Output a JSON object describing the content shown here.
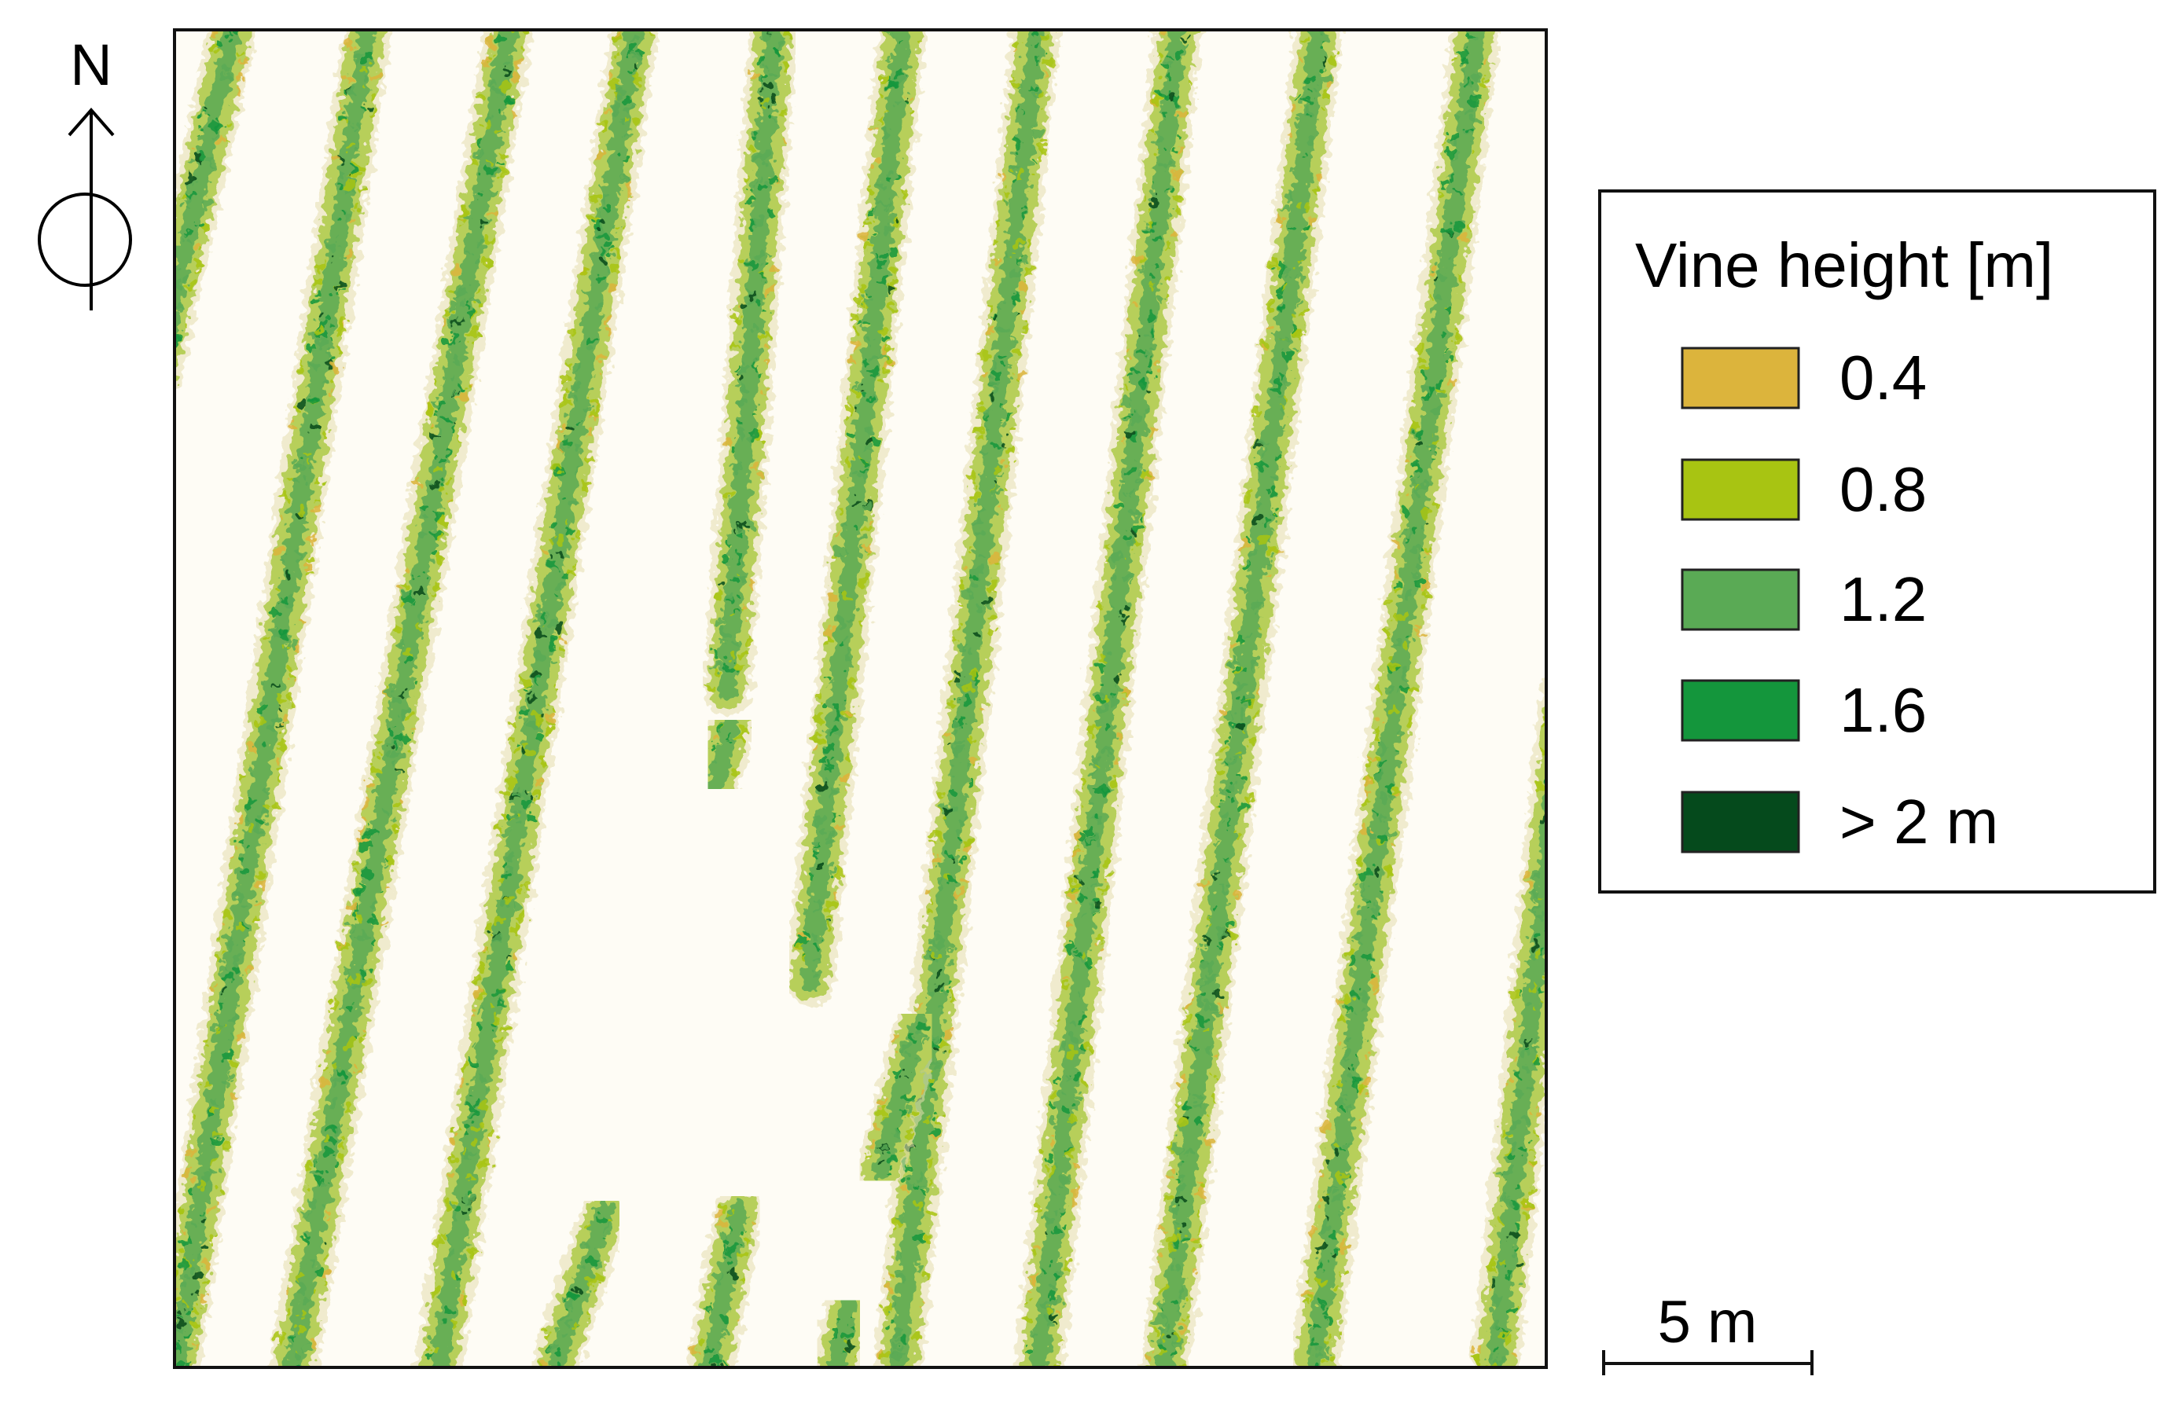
{
  "north_arrow": {
    "label": "N",
    "icon": "north-arrow-icon"
  },
  "map": {
    "description_icon": "vineyard-rows-canopy-height-raster",
    "background_color": "#fefcf5",
    "row_count": 10
  },
  "legend": {
    "title": "Vine height [m]",
    "items": [
      {
        "label": "0.4",
        "color": "#dcb43c"
      },
      {
        "label": "0.8",
        "color": "#a8c412"
      },
      {
        "label": "1.2",
        "color": "#5aaa55"
      },
      {
        "label": "1.6",
        "color": "#14963c"
      },
      {
        "label": "> 2 m",
        "color": "#054a1c"
      }
    ]
  },
  "scale_bar": {
    "label": "5 m"
  }
}
